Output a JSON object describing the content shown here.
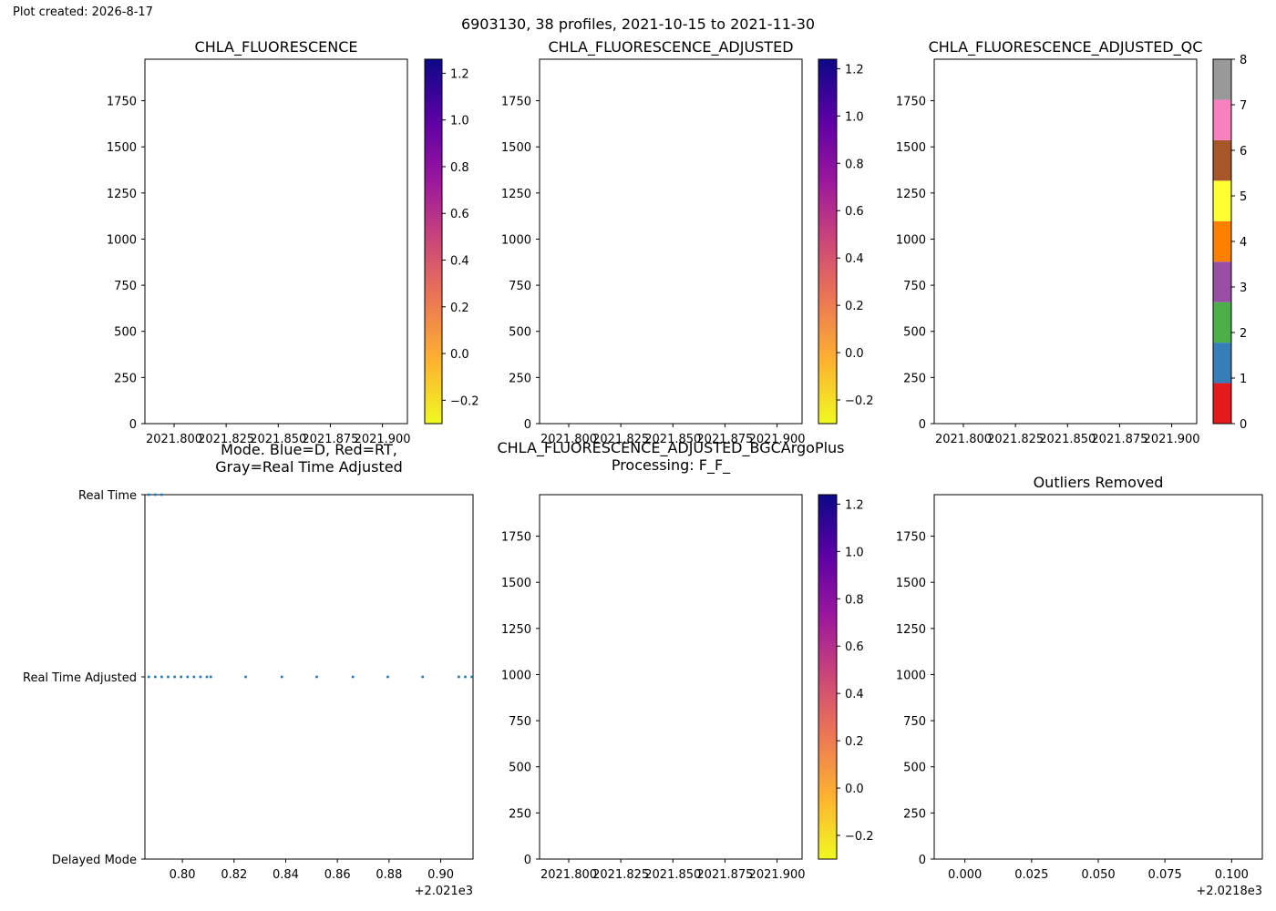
{
  "figure": {
    "created_label": "Plot created: 2026-8-17",
    "suptitle": "6903130, 38 profiles, 2021-10-15 to 2021-11-30"
  },
  "colors": {
    "mode_points": "#1f77b4",
    "plasma_r": [
      "#f0f921",
      "#fdb42f",
      "#ed7953",
      "#cc4778",
      "#9c179e",
      "#5c01a6",
      "#0d0887"
    ],
    "qc_flags": [
      "#e41a1c",
      "#377eb8",
      "#4daf4a",
      "#984ea3",
      "#ff7f00",
      "#ffff33",
      "#a65628",
      "#f781bf",
      "#999999"
    ]
  },
  "chart_data": [
    {
      "id": "chla",
      "type": "heatmap",
      "title": "CHLA_FLUORESCENCE",
      "y_ticks": [
        "0",
        "250",
        "500",
        "750",
        "1000",
        "1250",
        "1500",
        "1750"
      ],
      "y_tick_values": [
        0,
        250,
        500,
        750,
        1000,
        1250,
        1500,
        1750
      ],
      "ylim": [
        1975,
        0
      ],
      "x_ticks": [
        "2021.800",
        "2021.825",
        "2021.850",
        "2021.875",
        "2021.900"
      ],
      "x_tick_values": [
        2021.8,
        2021.825,
        2021.85,
        2021.875,
        2021.9
      ],
      "xlim": [
        2021.786,
        2021.912
      ],
      "colorbar": {
        "colormap": "plasma_r",
        "range": [
          -0.3,
          1.26
        ],
        "ticks": [
          "−0.2",
          "0.0",
          "0.2",
          "0.4",
          "0.6",
          "0.8",
          "1.0",
          "1.2"
        ],
        "tick_values": [
          -0.2,
          0,
          0.2,
          0.4,
          0.6,
          0.8,
          1.0,
          1.2
        ]
      },
      "data": []
    },
    {
      "id": "chla_adj",
      "type": "heatmap",
      "title": "CHLA_FLUORESCENCE_ADJUSTED",
      "y_ticks": [
        "0",
        "250",
        "500",
        "750",
        "1000",
        "1250",
        "1500",
        "1750"
      ],
      "y_tick_values": [
        0,
        250,
        500,
        750,
        1000,
        1250,
        1500,
        1750
      ],
      "ylim": [
        1975,
        0
      ],
      "x_ticks": [
        "2021.800",
        "2021.825",
        "2021.850",
        "2021.875",
        "2021.900"
      ],
      "x_tick_values": [
        2021.8,
        2021.825,
        2021.85,
        2021.875,
        2021.9
      ],
      "xlim": [
        2021.786,
        2021.912
      ],
      "colorbar": {
        "colormap": "plasma_r",
        "range": [
          -0.3,
          1.24
        ],
        "ticks": [
          "−0.2",
          "0.0",
          "0.2",
          "0.4",
          "0.6",
          "0.8",
          "1.0",
          "1.2"
        ],
        "tick_values": [
          -0.2,
          0,
          0.2,
          0.4,
          0.6,
          0.8,
          1.0,
          1.2
        ]
      },
      "data": []
    },
    {
      "id": "chla_adj_qc",
      "type": "heatmap",
      "title": "CHLA_FLUORESCENCE_ADJUSTED_QC",
      "y_ticks": [
        "0",
        "250",
        "500",
        "750",
        "1000",
        "1250",
        "1500",
        "1750"
      ],
      "y_tick_values": [
        0,
        250,
        500,
        750,
        1000,
        1250,
        1500,
        1750
      ],
      "ylim": [
        1975,
        0
      ],
      "x_ticks": [
        "2021.800",
        "2021.825",
        "2021.850",
        "2021.875",
        "2021.900"
      ],
      "x_tick_values": [
        2021.8,
        2021.825,
        2021.85,
        2021.875,
        2021.9
      ],
      "xlim": [
        2021.786,
        2021.912
      ],
      "colorbar": {
        "colormap": "qc_flags",
        "range": [
          0,
          8
        ],
        "ticks": [
          "0",
          "1",
          "2",
          "3",
          "4",
          "5",
          "6",
          "7",
          "8"
        ],
        "tick_values": [
          0,
          1,
          2,
          3,
          4,
          5,
          6,
          7,
          8
        ]
      },
      "data": []
    },
    {
      "id": "mode",
      "type": "scatter",
      "title": "Mode. Blue=D, Red=RT,",
      "title_line2": "Gray=Real Time Adjusted",
      "y_categories": [
        "Real Time",
        "Real Time Adjusted",
        "Delayed Mode"
      ],
      "y_category_values": [
        0,
        1,
        2
      ],
      "ylim": [
        0,
        2
      ],
      "x_ticks": [
        "0.80",
        "0.82",
        "0.84",
        "0.86",
        "0.88",
        "0.90"
      ],
      "x_tick_values": [
        0.8,
        0.82,
        0.84,
        0.86,
        0.88,
        0.9
      ],
      "x_offset_label": "+2.021e3",
      "xlim": [
        0.7855,
        0.9125
      ],
      "series": [
        {
          "name": "Real Time Adjusted",
          "y": 1,
          "x": [
            0.787,
            0.7895,
            0.792,
            0.7945,
            0.797,
            0.7995,
            0.802,
            0.8045,
            0.807,
            0.8095,
            0.811,
            0.8245,
            0.8385,
            0.852,
            0.866,
            0.8795,
            0.893,
            0.907,
            0.9095,
            0.912
          ]
        },
        {
          "name": "Real Time",
          "y": 0,
          "x": [
            0.787,
            0.7895,
            0.792
          ]
        }
      ]
    },
    {
      "id": "chla_bgc",
      "type": "heatmap",
      "title": "CHLA_FLUORESCENCE_ADJUSTED_BGCArgoPlus",
      "title_line2": "Processing: F_F_",
      "y_ticks": [
        "0",
        "250",
        "500",
        "750",
        "1000",
        "1250",
        "1500",
        "1750"
      ],
      "y_tick_values": [
        0,
        250,
        500,
        750,
        1000,
        1250,
        1500,
        1750
      ],
      "ylim": [
        1975,
        0
      ],
      "x_ticks": [
        "2021.800",
        "2021.825",
        "2021.850",
        "2021.875",
        "2021.900"
      ],
      "x_tick_values": [
        2021.8,
        2021.825,
        2021.85,
        2021.875,
        2021.9
      ],
      "xlim": [
        2021.786,
        2021.912
      ],
      "colorbar": {
        "colormap": "plasma_r",
        "range": [
          -0.3,
          1.24
        ],
        "ticks": [
          "−0.2",
          "0.0",
          "0.2",
          "0.4",
          "0.6",
          "0.8",
          "1.0",
          "1.2"
        ],
        "tick_values": [
          -0.2,
          0,
          0.2,
          0.4,
          0.6,
          0.8,
          1.0,
          1.2
        ]
      },
      "data": []
    },
    {
      "id": "outliers",
      "type": "scatter",
      "title": "Outliers Removed",
      "y_ticks": [
        "0",
        "250",
        "500",
        "750",
        "1000",
        "1250",
        "1500",
        "1750"
      ],
      "y_tick_values": [
        0,
        250,
        500,
        750,
        1000,
        1250,
        1500,
        1750
      ],
      "ylim": [
        1975,
        0
      ],
      "x_ticks": [
        "0.000",
        "0.025",
        "0.050",
        "0.075",
        "0.100"
      ],
      "x_tick_values": [
        0.0,
        0.025,
        0.05,
        0.075,
        0.1
      ],
      "x_offset_label": "+2.0218e3",
      "xlim": [
        -0.0115,
        0.1115
      ],
      "series": []
    }
  ]
}
